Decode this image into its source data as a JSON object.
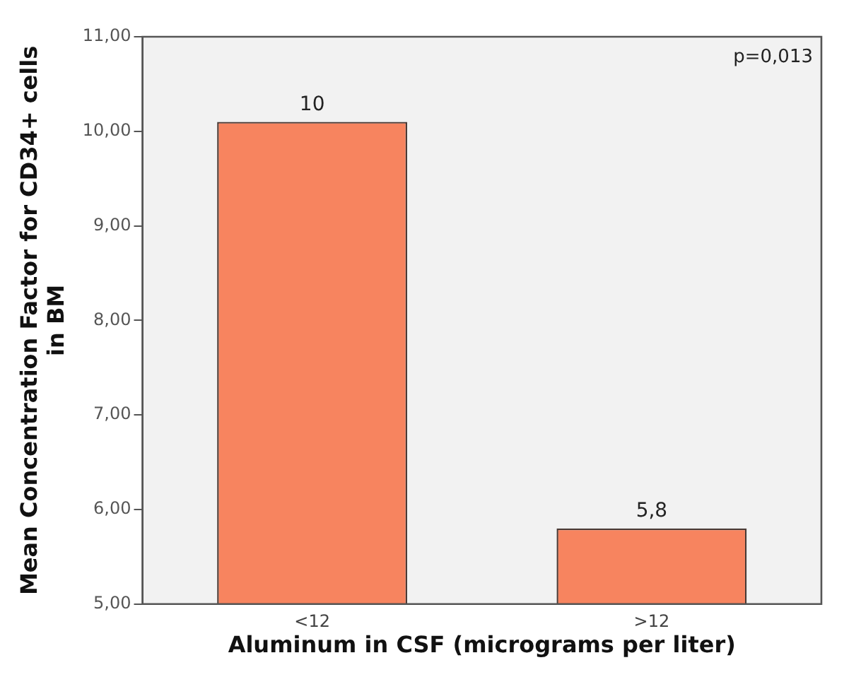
{
  "chart_data": {
    "type": "bar",
    "xlabel": "Aluminum in CSF (micrograms per liter)",
    "ylabel": "Mean Concentration Factor for CD34+ cells in BM",
    "categories": [
      "<12",
      ">12"
    ],
    "values": [
      10.1,
      5.8
    ],
    "value_labels": [
      "10",
      "5,8"
    ],
    "color": "#f7845f",
    "ylim": [
      5,
      11
    ],
    "yticks": [
      {
        "value": 5,
        "label": "5,00"
      },
      {
        "value": 6,
        "label": "6,00"
      },
      {
        "value": 7,
        "label": "7,00"
      },
      {
        "value": 8,
        "label": "8,00"
      },
      {
        "value": 9,
        "label": "9,00"
      },
      {
        "value": 10,
        "label": "10,00"
      },
      {
        "value": 11,
        "label": "11,00"
      }
    ],
    "annotations": [
      "p=0,013"
    ],
    "grid": false,
    "legend": false
  }
}
